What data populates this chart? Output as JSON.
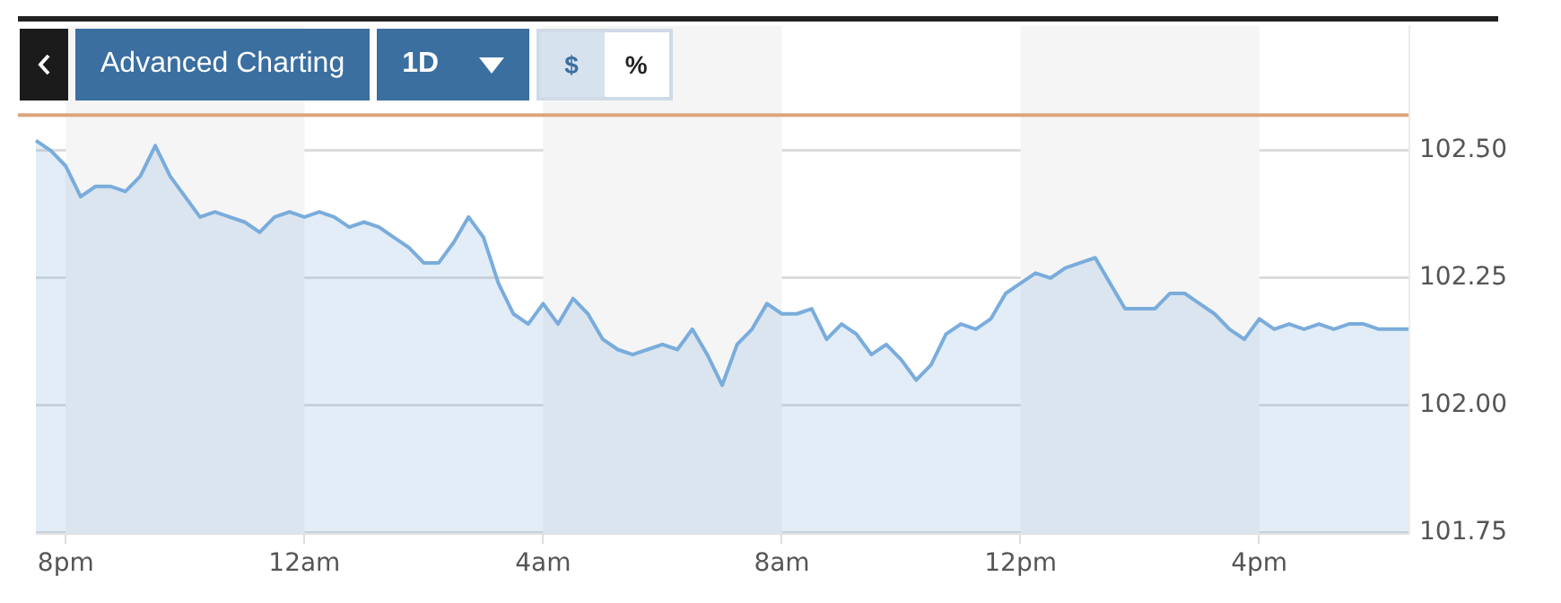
{
  "chart_data": {
    "type": "area",
    "categories": [
      null,
      null,
      "8pm",
      null,
      null,
      null,
      null,
      null,
      null,
      null,
      null,
      null,
      null,
      null,
      null,
      null,
      null,
      null,
      "12am",
      null,
      null,
      null,
      null,
      null,
      null,
      null,
      null,
      null,
      null,
      null,
      null,
      null,
      null,
      null,
      "4am",
      null,
      null,
      null,
      null,
      null,
      null,
      null,
      null,
      null,
      null,
      null,
      null,
      null,
      null,
      null,
      "8am",
      null,
      null,
      null,
      null,
      null,
      null,
      null,
      null,
      null,
      null,
      null,
      null,
      null,
      null,
      null,
      "12pm",
      null,
      null,
      null,
      null,
      null,
      null,
      null,
      null,
      null,
      null,
      null,
      null,
      null,
      null,
      null,
      "4pm",
      null,
      null,
      null,
      null,
      null,
      null,
      null,
      null,
      null,
      null
    ],
    "series": [
      {
        "color": "#7aacdc",
        "values": [
          102.52,
          102.5,
          102.47,
          102.41,
          102.43,
          102.43,
          102.42,
          102.45,
          102.51,
          102.45,
          102.41,
          102.37,
          102.38,
          102.37,
          102.36,
          102.34,
          102.37,
          102.38,
          102.37,
          102.38,
          102.37,
          102.35,
          102.36,
          102.35,
          102.33,
          102.31,
          102.28,
          102.28,
          102.32,
          102.37,
          102.33,
          102.24,
          102.18,
          102.16,
          102.2,
          102.16,
          102.21,
          102.18,
          102.13,
          102.11,
          102.1,
          102.11,
          102.12,
          102.11,
          102.15,
          102.1,
          102.04,
          102.12,
          102.15,
          102.2,
          102.18,
          102.18,
          102.19,
          102.13,
          102.16,
          102.14,
          102.1,
          102.12,
          102.09,
          102.05,
          102.08,
          102.14,
          102.16,
          102.15,
          102.17,
          102.22,
          102.24,
          102.26,
          102.25,
          102.27,
          102.28,
          102.29,
          102.24,
          102.19,
          102.19,
          102.19,
          102.22,
          102.22,
          102.2,
          102.18,
          102.15,
          102.13,
          102.17,
          102.15,
          102.16,
          102.15,
          102.16,
          102.15,
          102.16,
          102.16,
          102.15,
          102.15,
          102.15
        ]
      }
    ],
    "ylim": [
      101.75,
      102.745
    ],
    "yticks": [
      {
        "value": 101.75,
        "label": "101.75"
      },
      {
        "value": 102,
        "label": "102.00"
      },
      {
        "value": 102.25,
        "label": "102.25"
      },
      {
        "value": 102.5,
        "label": "102.50"
      }
    ],
    "grid": "y",
    "ref_lines": [
      {
        "axis": "y",
        "value": 102.57,
        "color": "#dca57c"
      }
    ],
    "bands": [
      {
        "axis": "x",
        "from": "8pm",
        "to": "12am",
        "color": "#f5f5f5"
      },
      {
        "axis": "x",
        "from": "4am",
        "to": "8am",
        "color": "#f5f5f5"
      },
      {
        "axis": "x",
        "from": "12pm",
        "to": "4pm",
        "color": "#f5f5f5"
      }
    ],
    "annotations": [
      "Advanced Charting",
      "1D",
      "$",
      "%"
    ]
  }
}
